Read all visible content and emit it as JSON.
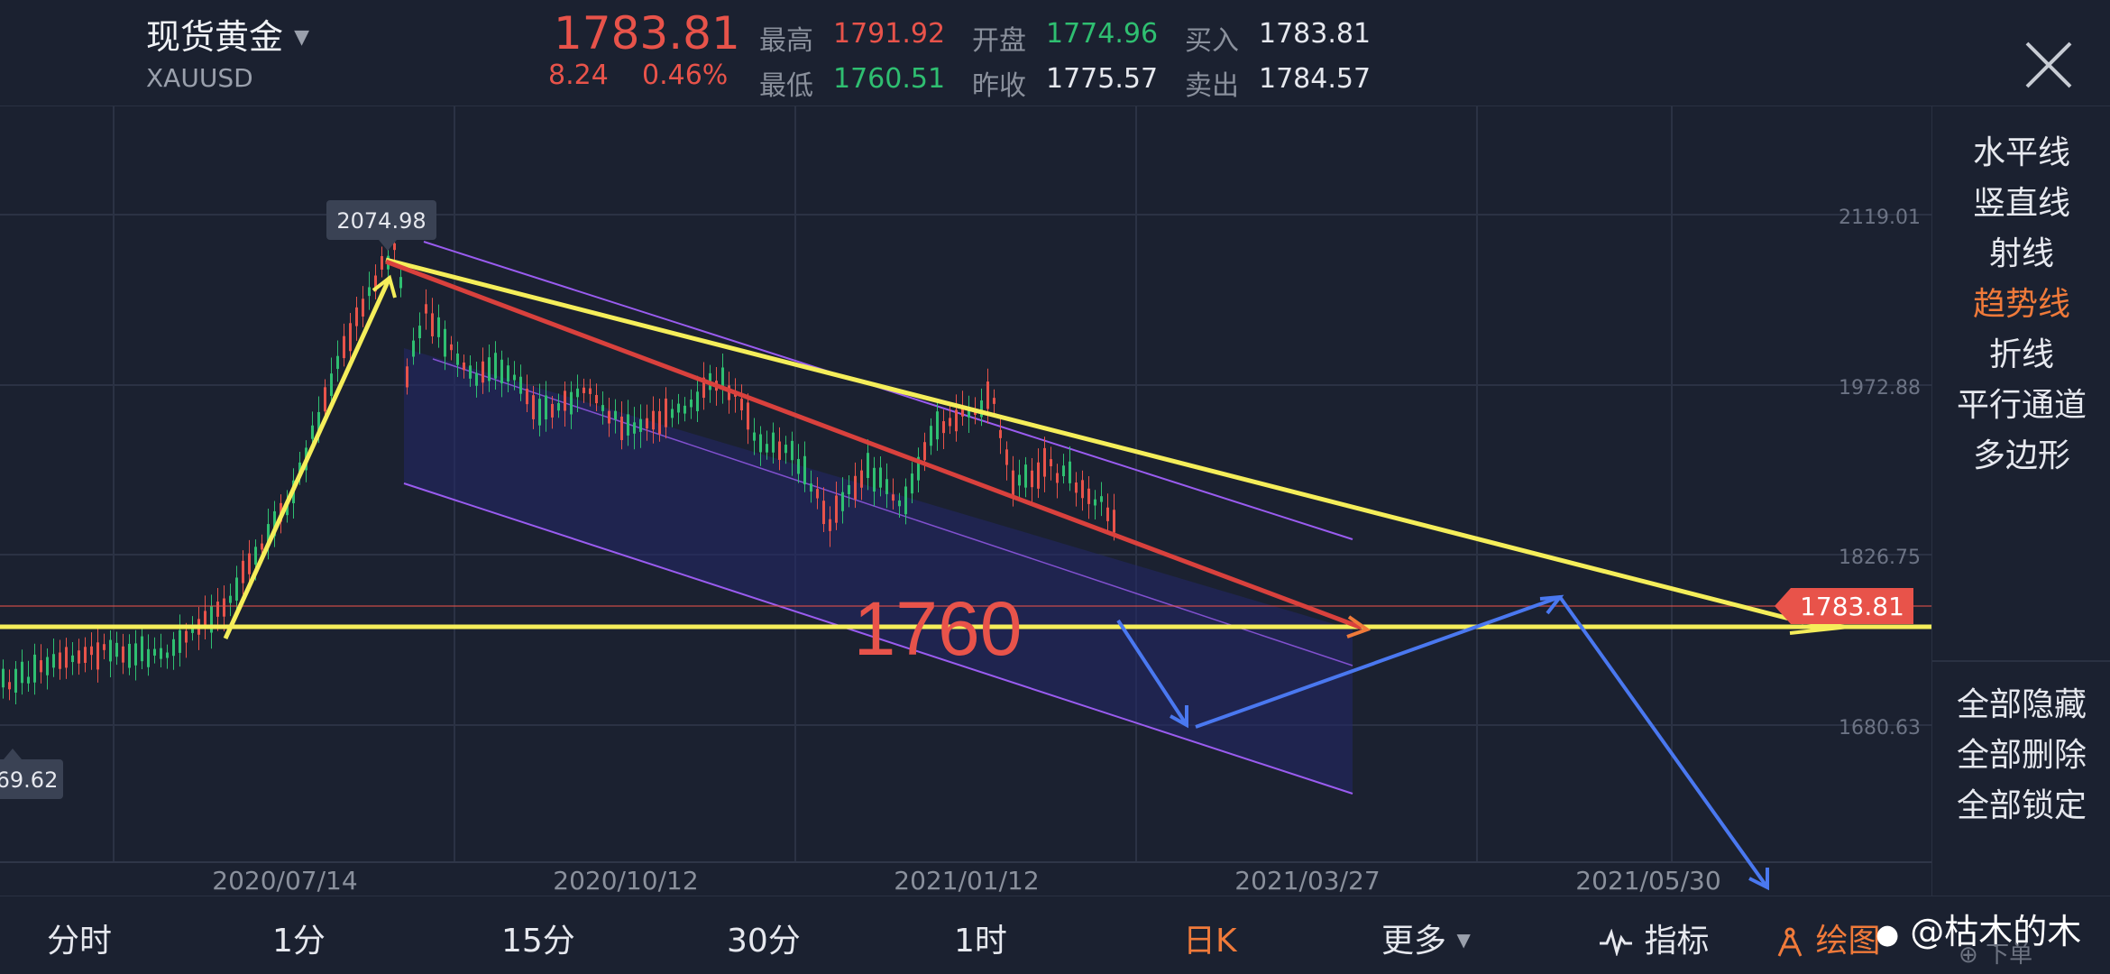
{
  "header": {
    "instrument_name": "现货黄金",
    "symbol": "XAUUSD",
    "last_price": "1783.81",
    "change": "8.24",
    "change_pct": "0.46%",
    "high_label": "最高",
    "high_value": "1791.92",
    "low_label": "最低",
    "low_value": "1760.51",
    "open_label": "开盘",
    "open_value": "1774.96",
    "prev_close_label": "昨收",
    "prev_close_value": "1775.57",
    "bid_label": "买入",
    "bid_value": "1783.81",
    "ask_label": "卖出",
    "ask_value": "1784.57"
  },
  "toolbar": {
    "items": [
      "水平线",
      "竖直线",
      "射线",
      "趋势线",
      "折线",
      "平行通道",
      "多边形"
    ],
    "active": "趋势线",
    "actions": [
      "全部隐藏",
      "全部删除",
      "全部锁定"
    ]
  },
  "chart": {
    "price_labels": [
      "2119.01",
      "1972.88",
      "1826.75",
      "1680.63"
    ],
    "date_labels": [
      "2020/07/14",
      "2020/10/12",
      "2021/01/12",
      "2021/03/27",
      "2021/05/30"
    ],
    "current_price_tag": "1783.81",
    "high_marker": "2074.98",
    "low_marker": "69.62",
    "annotation": "1760"
  },
  "bottom_bar": {
    "timeframes": [
      "分时",
      "1分",
      "15分",
      "30分",
      "1时",
      "日K",
      "更多"
    ],
    "active": "日K",
    "indicator_label": "指标",
    "draw_label": "绘图",
    "watermark": "@枯木的木",
    "watermark_sub": "下单"
  },
  "colors": {
    "up": "#e8534a",
    "down": "#2fbf71",
    "accent": "#f07a3a",
    "trend_yellow": "#f5ee5a",
    "trend_red": "#d9413d",
    "channel_purple": "#9a5cf0",
    "arrow_blue": "#4a78f0"
  }
}
